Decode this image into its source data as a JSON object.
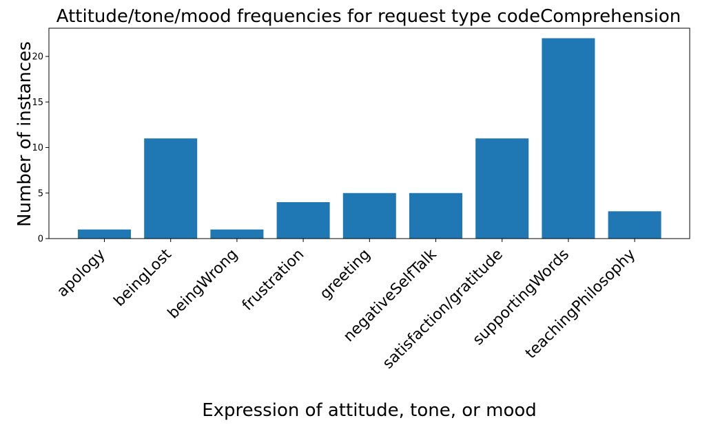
{
  "chart_data": {
    "type": "bar",
    "title": "Attitude/tone/mood frequencies for request type codeComprehension",
    "xlabel": "Expression of attitude, tone, or mood",
    "ylabel": "Number of instances",
    "categories": [
      "apology",
      "beingLost",
      "beingWrong",
      "frustration",
      "greeting",
      "negativeSelfTalk",
      "satisfaction/gratitude",
      "supportingWords",
      "teachingPhilosophy"
    ],
    "values": [
      1,
      11,
      1,
      4,
      5,
      5,
      11,
      22,
      3
    ],
    "yticks": [
      "0",
      "5",
      "10",
      "15",
      "20"
    ],
    "ylim": [
      0,
      23.1
    ],
    "grid": false,
    "bar_color": "#1f77b4"
  }
}
